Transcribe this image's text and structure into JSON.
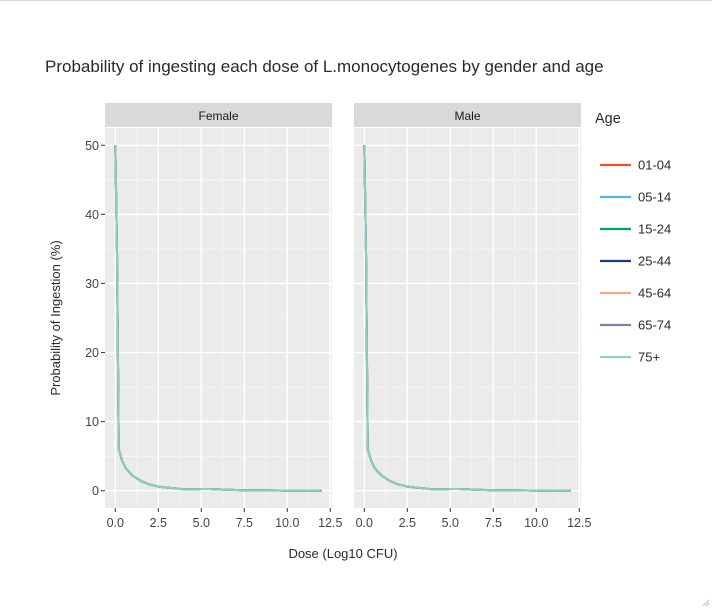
{
  "chart_data": {
    "type": "line",
    "title": "Probability of ingesting each dose of L.monocytogenes by gender and age",
    "xlabel": "Dose (Log10 CFU)",
    "ylabel": "Probability of Ingestion (%)",
    "xlim": [
      -0.6,
      12.6
    ],
    "ylim": [
      -2.5,
      52.5
    ],
    "x_ticks": [
      0,
      2.5,
      5,
      7.5,
      10,
      12.5
    ],
    "x_tick_labels": [
      "0.0",
      "2.5",
      "5.0",
      "7.5",
      "10.0",
      "12.5"
    ],
    "y_ticks": [
      0,
      10,
      20,
      30,
      40,
      50
    ],
    "y_tick_labels": [
      "0",
      "10",
      "20",
      "30",
      "40",
      "50"
    ],
    "legend_title": "Age",
    "legend_position": "right",
    "grid": true,
    "facets": [
      "Female",
      "Male"
    ],
    "x": [
      0,
      0.1,
      0.2,
      0.4,
      0.6,
      0.8,
      1.0,
      1.5,
      2.0,
      2.5,
      3.0,
      3.5,
      4.0,
      4.5,
      5.0,
      5.5,
      6.0,
      6.5,
      7.0,
      8.0,
      9.0,
      10.0,
      11.0,
      12.0
    ],
    "series": [
      {
        "name": "01-04",
        "color": "#e4572e"
      },
      {
        "name": "05-14",
        "color": "#56b4e9"
      },
      {
        "name": "15-24",
        "color": "#009e73"
      },
      {
        "name": "25-44",
        "color": "#1f3a7a"
      },
      {
        "name": "45-64",
        "color": "#f4a582"
      },
      {
        "name": "65-74",
        "color": "#7b84a6"
      },
      {
        "name": "75+",
        "color": "#8fd3c4"
      }
    ],
    "panel_values": {
      "Female": [
        50,
        34,
        6,
        4.3,
        3.3,
        2.7,
        2.2,
        1.4,
        0.9,
        0.6,
        0.45,
        0.35,
        0.2,
        0.2,
        0.25,
        0.25,
        0.2,
        0.15,
        0.1,
        0.05,
        0.05,
        0.02,
        0.02,
        0.02
      ],
      "Male": [
        50,
        34,
        6,
        4.3,
        3.3,
        2.7,
        2.2,
        1.4,
        0.9,
        0.6,
        0.45,
        0.35,
        0.2,
        0.2,
        0.25,
        0.25,
        0.2,
        0.15,
        0.1,
        0.05,
        0.05,
        0.02,
        0.02,
        0.02
      ]
    }
  }
}
